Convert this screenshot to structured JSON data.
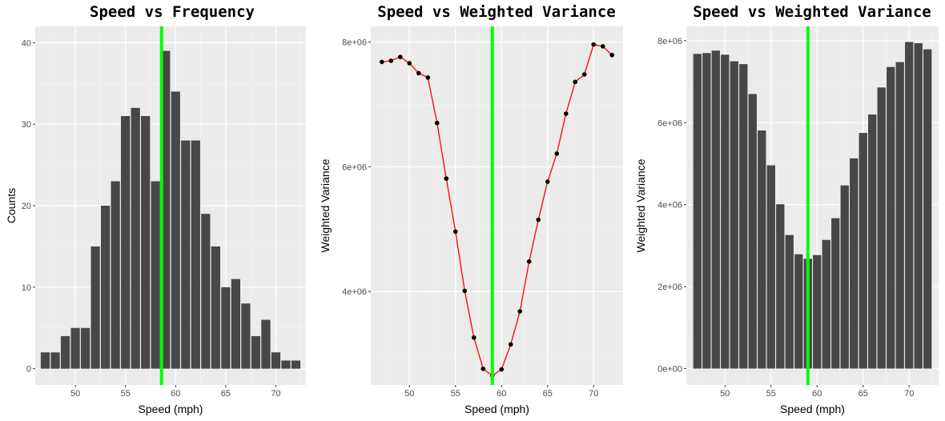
{
  "chart_data": [
    {
      "type": "bar",
      "title": "Speed vs Frequency",
      "xlabel": "Speed (mph)",
      "ylabel": "Counts",
      "xlim": [
        46,
        73
      ],
      "ylim": [
        -2,
        42
      ],
      "xticks": [
        50,
        55,
        60,
        65,
        70
      ],
      "xtick_labels": [
        "50",
        "55",
        "60",
        "65",
        "70"
      ],
      "yticks": [
        0,
        10,
        20,
        30,
        40
      ],
      "ytick_labels": [
        "0",
        "10",
        "20",
        "30",
        "40"
      ],
      "grid": true,
      "x": [
        47,
        48,
        49,
        50,
        51,
        52,
        53,
        54,
        55,
        56,
        57,
        58,
        59,
        60,
        61,
        62,
        63,
        64,
        65,
        66,
        67,
        68,
        69,
        70,
        71,
        72
      ],
      "values": [
        2,
        2,
        4,
        5,
        5,
        15,
        20,
        23,
        31,
        32,
        31,
        23,
        39,
        34,
        28,
        28,
        19,
        15,
        10,
        11,
        8,
        4,
        6,
        2,
        1,
        1
      ],
      "bar_color": "#474747",
      "reference_line": {
        "x": 58.6,
        "color": "#00ff00"
      }
    },
    {
      "type": "line",
      "title": "Speed vs Weighted Variance",
      "xlabel": "Speed (mph)",
      "ylabel": "Weighted Variance",
      "xlim": [
        45.8,
        73.2
      ],
      "ylim": [
        2500000,
        8250000
      ],
      "xticks": [
        50,
        55,
        60,
        65,
        70
      ],
      "xtick_labels": [
        "50",
        "55",
        "60",
        "65",
        "70"
      ],
      "yticks": [
        4000000,
        6000000,
        8000000
      ],
      "ytick_labels": [
        "4e+06",
        "6e+06",
        "8e+06"
      ],
      "grid": true,
      "x": [
        47,
        48,
        49,
        50,
        51,
        52,
        53,
        54,
        55,
        56,
        57,
        58,
        59,
        60,
        61,
        62,
        63,
        64,
        65,
        66,
        67,
        68,
        69,
        70,
        71,
        72
      ],
      "values": [
        7680000,
        7700000,
        7760000,
        7660000,
        7500000,
        7430000,
        6700000,
        5810000,
        4960000,
        4010000,
        3260000,
        2760000,
        2650000,
        2750000,
        3150000,
        3680000,
        4480000,
        5150000,
        5760000,
        6210000,
        6850000,
        7360000,
        7480000,
        7960000,
        7930000,
        7790000
      ],
      "line_color": "#ff0000",
      "point_color": "#000000",
      "reference_line": {
        "x": 59,
        "color": "#00ff00"
      }
    },
    {
      "type": "bar",
      "title": "Speed vs Weighted Variance",
      "xlabel": "Speed (mph)",
      "ylabel": "Weighted Variance",
      "xlim": [
        45.8,
        73.2
      ],
      "ylim": [
        -400000,
        8350000
      ],
      "xticks": [
        50,
        55,
        60,
        65,
        70
      ],
      "xtick_labels": [
        "50",
        "55",
        "60",
        "65",
        "70"
      ],
      "yticks": [
        0,
        2000000,
        4000000,
        6000000,
        8000000
      ],
      "ytick_labels": [
        "0e+00",
        "2e+06",
        "4e+06",
        "6e+06",
        "8e+06"
      ],
      "grid": true,
      "x": [
        47,
        48,
        49,
        50,
        51,
        52,
        53,
        54,
        55,
        56,
        57,
        58,
        59,
        60,
        61,
        62,
        63,
        64,
        65,
        66,
        67,
        68,
        69,
        70,
        71,
        72
      ],
      "values": [
        7680000,
        7700000,
        7760000,
        7660000,
        7500000,
        7430000,
        6700000,
        5810000,
        4960000,
        4010000,
        3260000,
        2790000,
        2680000,
        2770000,
        3140000,
        3670000,
        4470000,
        5130000,
        5750000,
        6200000,
        6860000,
        7360000,
        7480000,
        7970000,
        7940000,
        7790000
      ],
      "bar_color": "#474747",
      "reference_line": {
        "x": 59,
        "color": "#00ff00"
      }
    }
  ]
}
